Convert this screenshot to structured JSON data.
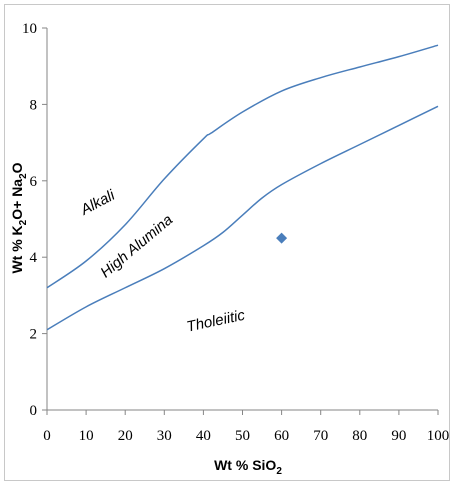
{
  "chart_data": {
    "type": "line",
    "title": "",
    "xlabel": "Wt % SiO2",
    "xlabel_main": "Wt % SiO",
    "xlabel_sub": "2",
    "ylabel": "Wt % K2O+ Na2O",
    "ylabel_parts": [
      "Wt % K",
      "2",
      "O+ Na",
      "2",
      "O"
    ],
    "xlim": [
      0,
      100
    ],
    "ylim": [
      0,
      10
    ],
    "xticks": [
      0,
      10,
      20,
      30,
      40,
      50,
      60,
      70,
      80,
      90,
      100
    ],
    "yticks": [
      0,
      2,
      4,
      6,
      8,
      10
    ],
    "grid": false,
    "line_color": "#4a7ebb",
    "marker_color": "#4a7ebb",
    "series": [
      {
        "x": [
          0,
          10,
          20,
          30,
          40,
          42,
          50,
          60,
          70,
          80,
          90,
          100
        ],
        "y": [
          3.2,
          3.9,
          4.85,
          6.05,
          7.1,
          7.25,
          7.8,
          8.35,
          8.7,
          8.98,
          9.25,
          9.55
        ]
      },
      {
        "x": [
          0,
          10,
          20,
          30,
          40,
          45,
          50,
          55,
          60,
          70,
          80,
          90,
          100
        ],
        "y": [
          2.1,
          2.7,
          3.2,
          3.7,
          4.3,
          4.65,
          5.1,
          5.55,
          5.9,
          6.45,
          6.95,
          7.45,
          7.95
        ]
      }
    ],
    "points": [
      {
        "x": 60,
        "y": 4.5
      }
    ],
    "annotations": [
      {
        "text": "Alkali",
        "x": 9.5,
        "y": 5.1,
        "angle": -28
      },
      {
        "text": "High Alumina",
        "x": 15,
        "y": 3.45,
        "angle": -40
      },
      {
        "text": "Tholeiitic",
        "x": 36,
        "y": 2.05,
        "angle": -12
      }
    ]
  }
}
